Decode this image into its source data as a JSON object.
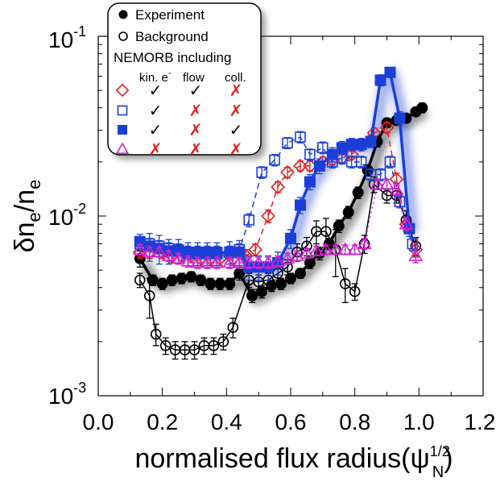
{
  "chart_data": {
    "type": "line",
    "xlabel": "normalised flux radius(ψ",
    "xlabel_sup": "1/2",
    "xlabel_sub": "N",
    "xlabel_close": ")",
    "ylabel_main": "δn",
    "ylabel_sub1": "e",
    "ylabel_mid": "/n",
    "ylabel_sub2": "e",
    "xlim": [
      0.0,
      1.2
    ],
    "ylim": [
      0.001,
      0.1
    ],
    "yscale": "log",
    "xticks": [
      "0.0",
      "0.2",
      "0.4",
      "0.6",
      "0.8",
      "1.0",
      "1.2"
    ],
    "yticks": [
      {
        "base": "10",
        "exp": "-3",
        "value": 0.001
      },
      {
        "base": "10",
        "exp": "-2",
        "value": 0.01
      },
      {
        "base": "10",
        "exp": "-1",
        "value": 0.1
      }
    ],
    "legend": {
      "placement": "top-left",
      "entries": [
        {
          "label": "Experiment",
          "marker": "filled-circle"
        },
        {
          "label": "Background",
          "marker": "open-circle"
        }
      ],
      "heading": "NEMORB including",
      "columns": [
        {
          "text": "kin. e",
          "sup": "-"
        },
        {
          "text": "flow",
          "sup": ""
        },
        {
          "text": "coll.",
          "sup": ""
        }
      ],
      "rows": [
        {
          "marker": "open-diamond",
          "color": "#e02020",
          "flags": [
            "✓",
            "✓",
            "✗"
          ]
        },
        {
          "marker": "open-square",
          "color": "#1a3fd8",
          "flags": [
            "✓",
            "✗",
            "✗"
          ]
        },
        {
          "marker": "filled-square",
          "color": "#1a3fd8",
          "flags": [
            "✓",
            "✗",
            "✓"
          ]
        },
        {
          "marker": "open-triangle",
          "color": "#d020d0",
          "flags": [
            "✗",
            "✗",
            "✗"
          ]
        }
      ]
    },
    "colors": {
      "check": "#000000",
      "cross": "#e02020",
      "experiment": "#000000",
      "red": "#e02020",
      "blue": "#1a3fd8",
      "magenta": "#d020d0"
    },
    "series": [
      {
        "marker": "filled-circle",
        "color": "#000000",
        "line": "solid",
        "lw": 3.5,
        "shadow": true,
        "x": [
          0.13,
          0.17,
          0.2,
          0.23,
          0.26,
          0.29,
          0.32,
          0.35,
          0.38,
          0.41,
          0.44,
          0.48,
          0.51,
          0.54,
          0.57,
          0.6,
          0.63,
          0.66,
          0.69,
          0.72,
          0.75,
          0.78,
          0.81,
          0.84,
          0.87,
          0.9,
          0.93,
          0.96,
          0.99,
          1.01
        ],
        "y": [
          0.0058,
          0.0044,
          0.0042,
          0.0044,
          0.0045,
          0.0046,
          0.0044,
          0.0042,
          0.0042,
          0.0042,
          0.0048,
          0.0036,
          0.0038,
          0.0041,
          0.0042,
          0.0045,
          0.0048,
          0.0055,
          0.0062,
          0.007,
          0.0088,
          0.0105,
          0.0135,
          0.018,
          0.026,
          0.033,
          0.034,
          0.035,
          0.038,
          0.04
        ],
        "err": [
          0.0006,
          0.0003,
          0.0003,
          0.0003,
          0.0003,
          0.0003,
          0.0003,
          0.0003,
          0.0003,
          0.0003,
          0.0004,
          0.0003,
          0.0003,
          0.0003,
          0.0003,
          0.0003,
          0.0003,
          0.0004,
          0.0005,
          0.0005,
          0.0007,
          0.0008,
          0.001,
          0.0013,
          0.0018,
          0.002,
          0.002,
          0.002,
          0.002,
          0.0025
        ]
      },
      {
        "marker": "open-circle",
        "color": "#000000",
        "line": "solid",
        "lw": 1.5,
        "shadow": false,
        "x": [
          0.13,
          0.16,
          0.18,
          0.21,
          0.24,
          0.27,
          0.3,
          0.33,
          0.36,
          0.39,
          0.42,
          0.47,
          0.5,
          0.53,
          0.56,
          0.59,
          0.62,
          0.65,
          0.68,
          0.71,
          0.74,
          0.77,
          0.8,
          0.83,
          0.86,
          0.9,
          0.93,
          0.96,
          0.99
        ],
        "y": [
          0.0044,
          0.0036,
          0.0022,
          0.0019,
          0.0018,
          0.0018,
          0.0018,
          0.0019,
          0.0019,
          0.002,
          0.0024,
          0.0044,
          0.0043,
          0.0044,
          0.0048,
          0.0052,
          0.0063,
          0.0068,
          0.0082,
          0.0082,
          0.0065,
          0.0042,
          0.0038,
          0.007,
          0.015,
          0.013,
          0.013,
          0.0095,
          0.0068
        ],
        "err": [
          0.0004,
          0.0009,
          0.0003,
          0.0002,
          0.0002,
          0.0002,
          0.0002,
          0.0002,
          0.0002,
          0.0002,
          0.0003,
          0.0004,
          0.0004,
          0.0004,
          0.0004,
          0.0005,
          0.0007,
          0.0008,
          0.0012,
          0.0015,
          0.0019,
          0.0009,
          0.0004,
          0.0008,
          0.0015,
          0.0012,
          0.0012,
          0.0012,
          0.0008
        ]
      },
      {
        "marker": "open-diamond",
        "color": "#e02020",
        "line": "dashed",
        "lw": 1.5,
        "shadow": false,
        "x": [
          0.13,
          0.16,
          0.2,
          0.23,
          0.26,
          0.29,
          0.32,
          0.35,
          0.38,
          0.42,
          0.46,
          0.49,
          0.53,
          0.56,
          0.59,
          0.63,
          0.66,
          0.7,
          0.73,
          0.76,
          0.79,
          0.82,
          0.86,
          0.9,
          0.93,
          0.96,
          0.99
        ],
        "y": [
          0.0063,
          0.0063,
          0.0063,
          0.006,
          0.006,
          0.006,
          0.0058,
          0.0058,
          0.0058,
          0.0058,
          0.006,
          0.0065,
          0.01,
          0.0145,
          0.0175,
          0.019,
          0.019,
          0.02,
          0.0205,
          0.021,
          0.022,
          0.025,
          0.029,
          0.031,
          0.016,
          0.009,
          0.0065
        ],
        "err": [
          0.0005,
          0.0005,
          0.0005,
          0.0005,
          0.0005,
          0.0005,
          0.0005,
          0.0005,
          0.0005,
          0.0005,
          0.0005,
          0.0005,
          0.0008,
          0.001,
          0.0012,
          0.0012,
          0.0012,
          0.0013,
          0.0013,
          0.0013,
          0.0013,
          0.0015,
          0.0018,
          0.002,
          0.0013,
          0.0008,
          0.0006
        ]
      },
      {
        "marker": "open-square",
        "color": "#1a3fd8",
        "line": "dashed",
        "lw": 1.5,
        "shadow": false,
        "x": [
          0.13,
          0.16,
          0.19,
          0.22,
          0.25,
          0.28,
          0.31,
          0.34,
          0.37,
          0.41,
          0.44,
          0.47,
          0.51,
          0.55,
          0.59,
          0.63,
          0.66,
          0.7,
          0.73,
          0.76,
          0.79,
          0.82,
          0.85,
          0.88,
          0.91,
          0.94,
          0.98
        ],
        "y": [
          0.007,
          0.007,
          0.0068,
          0.0066,
          0.0065,
          0.0063,
          0.0063,
          0.0063,
          0.0063,
          0.0063,
          0.0065,
          0.0095,
          0.0175,
          0.0205,
          0.0255,
          0.0275,
          0.022,
          0.024,
          0.02,
          0.021,
          0.02,
          0.02,
          0.017,
          0.017,
          0.02,
          0.012,
          0.007
        ],
        "err": [
          0.0005,
          0.0005,
          0.0005,
          0.0005,
          0.0005,
          0.0005,
          0.0005,
          0.0005,
          0.0005,
          0.0005,
          0.0005,
          0.0008,
          0.0013,
          0.0015,
          0.0018,
          0.002,
          0.0016,
          0.0018,
          0.0015,
          0.0015,
          0.0015,
          0.0015,
          0.0013,
          0.0013,
          0.0015,
          0.0009,
          0.0006
        ]
      },
      {
        "marker": "filled-square",
        "color": "#1a3fd8",
        "line": "solid",
        "lw": 3.5,
        "shadow": true,
        "x": [
          0.13,
          0.16,
          0.19,
          0.22,
          0.25,
          0.28,
          0.31,
          0.34,
          0.37,
          0.41,
          0.44,
          0.47,
          0.5,
          0.53,
          0.56,
          0.6,
          0.63,
          0.66,
          0.69,
          0.73,
          0.76,
          0.79,
          0.82,
          0.85,
          0.88,
          0.91,
          0.94,
          0.97
        ],
        "y": [
          0.0072,
          0.0068,
          0.0066,
          0.0064,
          0.0064,
          0.0062,
          0.0062,
          0.0062,
          0.0062,
          0.0063,
          0.0063,
          0.0052,
          0.0052,
          0.0052,
          0.0055,
          0.0075,
          0.0115,
          0.0155,
          0.019,
          0.022,
          0.024,
          0.025,
          0.025,
          0.026,
          0.057,
          0.063,
          0.035,
          0.0085
        ],
        "err": [
          0.0007,
          0.0012,
          0.0012,
          0.001,
          0.001,
          0.0009,
          0.0009,
          0.0009,
          0.0009,
          0.0009,
          0.001,
          0.0008,
          0.0008,
          0.0008,
          0.0008,
          0.0009,
          0.0012,
          0.0015,
          0.0018,
          0.002,
          0.002,
          0.002,
          0.002,
          0.002,
          0.004,
          0.004,
          0.003,
          0.0008
        ]
      },
      {
        "marker": "open-triangle",
        "color": "#d020d0",
        "line": "dotted",
        "lw": 1.5,
        "shadow": false,
        "x": [
          0.13,
          0.16,
          0.19,
          0.22,
          0.25,
          0.28,
          0.31,
          0.34,
          0.37,
          0.41,
          0.44,
          0.47,
          0.5,
          0.53,
          0.56,
          0.59,
          0.62,
          0.65,
          0.68,
          0.71,
          0.74,
          0.77,
          0.8,
          0.83,
          0.87,
          0.9,
          0.93,
          0.96,
          0.99
        ],
        "y": [
          0.0065,
          0.0063,
          0.0063,
          0.006,
          0.0058,
          0.0056,
          0.0055,
          0.0055,
          0.0055,
          0.0055,
          0.0055,
          0.0055,
          0.0055,
          0.0055,
          0.0056,
          0.0058,
          0.006,
          0.0062,
          0.0064,
          0.0065,
          0.0065,
          0.0065,
          0.0065,
          0.007,
          0.015,
          0.015,
          0.014,
          0.009,
          0.006
        ],
        "err": [
          0.0004,
          0.0004,
          0.0004,
          0.0004,
          0.0004,
          0.0004,
          0.0004,
          0.0004,
          0.0004,
          0.0004,
          0.0004,
          0.0004,
          0.0004,
          0.0004,
          0.0004,
          0.0004,
          0.0004,
          0.0004,
          0.0004,
          0.0004,
          0.0004,
          0.0004,
          0.0004,
          0.0005,
          0.001,
          0.001,
          0.001,
          0.0007,
          0.0005
        ]
      }
    ]
  }
}
